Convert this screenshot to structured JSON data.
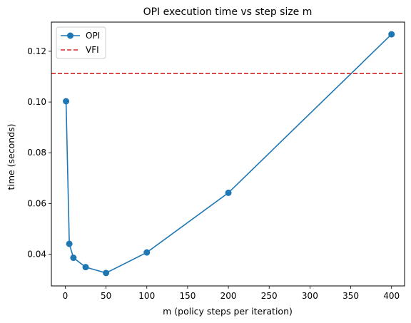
{
  "chart_data": {
    "type": "line",
    "title": "OPI execution time vs step size m",
    "xlabel": "m (policy steps per iteration)",
    "ylabel": "time (seconds)",
    "xlim": [
      -17,
      416
    ],
    "ylim": [
      0.0275,
      0.1315
    ],
    "xticks": [
      0,
      50,
      100,
      150,
      200,
      250,
      300,
      350,
      400
    ],
    "xtick_labels": [
      "0",
      "50",
      "100",
      "150",
      "200",
      "250",
      "300",
      "350",
      "400"
    ],
    "yticks": [
      0.04,
      0.06,
      0.08,
      0.1,
      0.12
    ],
    "ytick_labels": [
      "0.04",
      "0.06",
      "0.08",
      "0.10",
      "0.12"
    ],
    "grid": false,
    "legend_position": "top-left",
    "series": [
      {
        "name": "OPI",
        "kind": "line-marker",
        "color": "#1f77b4",
        "x": [
          1,
          5,
          10,
          25,
          50,
          100,
          200,
          400
        ],
        "y": [
          0.1003,
          0.0441,
          0.0386,
          0.0349,
          0.0326,
          0.0407,
          0.0642,
          0.1267
        ]
      },
      {
        "name": "VFI",
        "kind": "hline-dashed",
        "color": "#d62728",
        "y": 0.1112
      }
    ]
  }
}
